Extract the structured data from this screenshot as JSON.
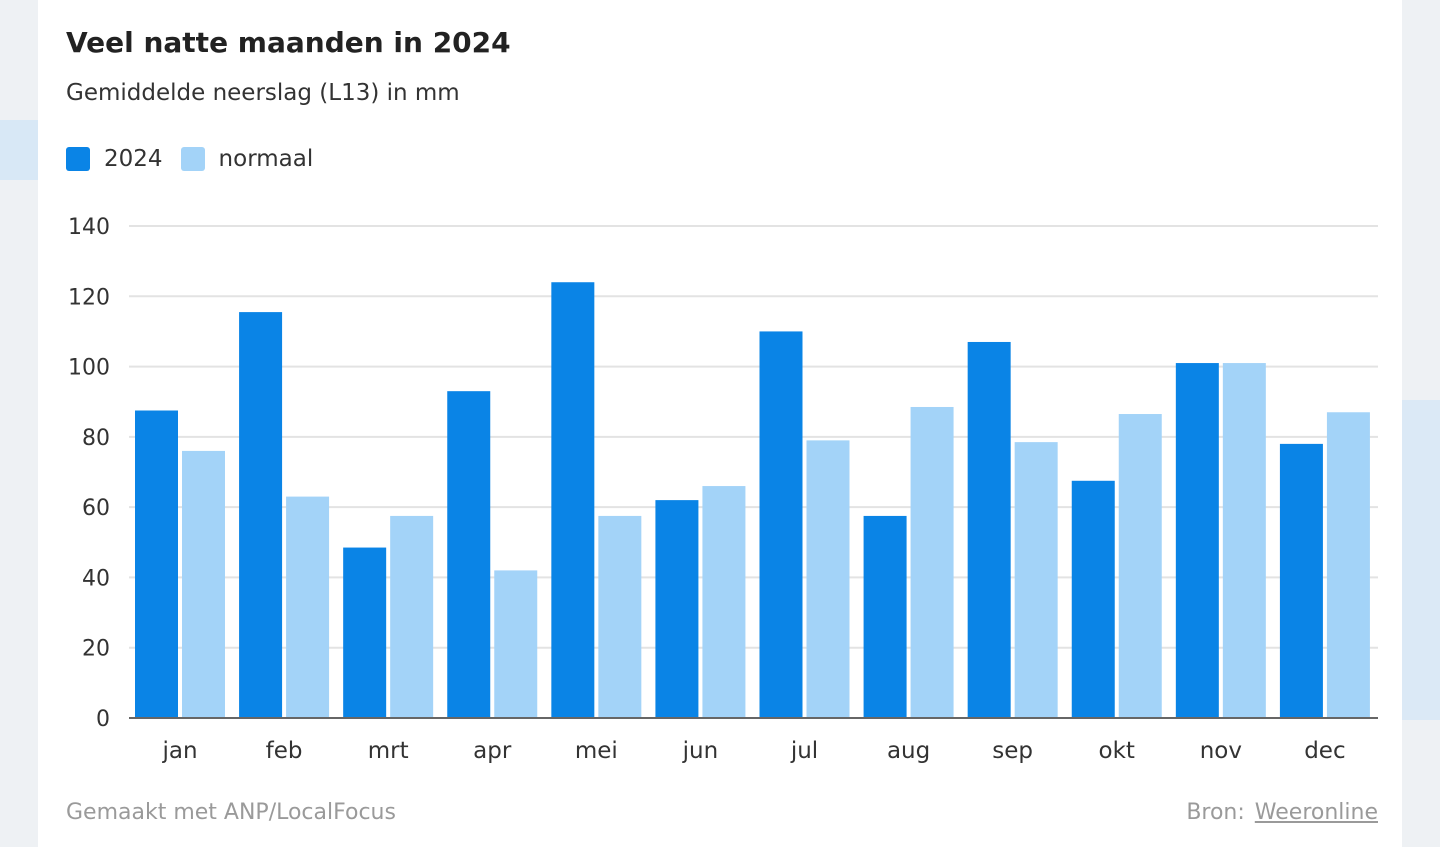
{
  "chart_data": {
    "type": "bar",
    "title": "Veel natte maanden in 2024",
    "subtitle": "Gemiddelde neerslag (L13) in mm",
    "categories": [
      "jan",
      "feb",
      "mrt",
      "apr",
      "mei",
      "jun",
      "jul",
      "aug",
      "sep",
      "okt",
      "nov",
      "dec"
    ],
    "series": [
      {
        "name": "2024",
        "color": "#0a84e6",
        "values": [
          87.5,
          115.5,
          48.5,
          93,
          124,
          62,
          110,
          57.5,
          107,
          67.5,
          101,
          78
        ]
      },
      {
        "name": "normaal",
        "color": "#a3d3f8",
        "values": [
          76,
          63,
          57.5,
          42,
          57.5,
          66,
          79,
          88.5,
          78.5,
          86.5,
          101,
          87
        ]
      }
    ],
    "ylim": [
      0,
      140
    ],
    "yticks": [
      0,
      20,
      40,
      60,
      80,
      100,
      120,
      140
    ],
    "xlabel": "",
    "ylabel": "",
    "legend_position": "top-left",
    "grid": true
  },
  "footer": {
    "credit": "Gemaakt met ANP/LocalFocus",
    "source_label": "Bron:",
    "source_link": "Weeronline"
  }
}
